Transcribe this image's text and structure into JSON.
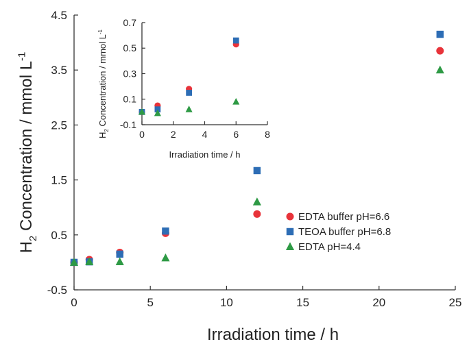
{
  "chart_data": [
    {
      "type": "scatter",
      "title": "",
      "xlabel": "Irradiation time / h",
      "ylabel_main": "H",
      "ylabel_sub": "2",
      "ylabel_rest": " Concentration / mmol L",
      "ylabel_sup": "-1",
      "xlim": [
        0,
        25
      ],
      "ylim": [
        -0.5,
        4.5
      ],
      "xticks": [
        0,
        5,
        10,
        15,
        20,
        25
      ],
      "yticks": [
        -0.5,
        0.5,
        1.5,
        2.5,
        3.5,
        4.5
      ],
      "xtick_labels": [
        "0",
        "5",
        "10",
        "15",
        "20",
        "25"
      ],
      "ytick_labels": [
        "-0.5",
        "0.5",
        "1.5",
        "2.5",
        "3.5",
        "4.5"
      ],
      "grid": false,
      "legend_position": "lower-right",
      "series": [
        {
          "name": "EDTA buffer pH=6.6",
          "color": "#e8333a",
          "marker": "circle",
          "x": [
            0,
            1,
            3,
            6,
            12,
            24
          ],
          "y": [
            0.0,
            0.05,
            0.18,
            0.53,
            0.88,
            3.85
          ]
        },
        {
          "name": "TEOA buffer pH=6.8",
          "color": "#2d6db5",
          "marker": "square",
          "x": [
            0,
            1,
            3,
            6,
            12,
            24
          ],
          "y": [
            0.0,
            0.01,
            0.15,
            0.57,
            1.67,
            4.15
          ]
        },
        {
          "name": "EDTA pH=4.4",
          "color": "#2e9a45",
          "marker": "triangle",
          "x": [
            0,
            1,
            3,
            6,
            12,
            24
          ],
          "y": [
            0.0,
            0.01,
            0.01,
            0.08,
            1.1,
            3.5
          ]
        }
      ]
    },
    {
      "type": "scatter",
      "title": "",
      "xlabel": "Irradiation time / h",
      "ylabel_main": "H",
      "ylabel_sub": "2",
      "ylabel_rest": " Concentration / mmol L",
      "ylabel_sup": "-1",
      "xlim": [
        0,
        8
      ],
      "ylim": [
        -0.1,
        0.7
      ],
      "xticks": [
        0,
        2,
        4,
        6,
        8
      ],
      "yticks": [
        -0.1,
        0.1,
        0.3,
        0.5,
        0.7
      ],
      "xtick_labels": [
        "0",
        "2",
        "4",
        "6",
        "8"
      ],
      "ytick_labels": [
        "-0.1",
        "0.1",
        "0.3",
        "0.5",
        "0.7"
      ],
      "grid": false,
      "series": [
        {
          "color": "#e8333a",
          "marker": "circle",
          "x": [
            0,
            1,
            3,
            6
          ],
          "y": [
            0.0,
            0.05,
            0.18,
            0.53
          ]
        },
        {
          "color": "#2d6db5",
          "marker": "square",
          "x": [
            0,
            1,
            3,
            6
          ],
          "y": [
            0.0,
            0.02,
            0.15,
            0.56
          ]
        },
        {
          "color": "#2e9a45",
          "marker": "triangle",
          "x": [
            0,
            1,
            3,
            6
          ],
          "y": [
            0.0,
            -0.01,
            0.02,
            0.08
          ]
        }
      ]
    }
  ]
}
